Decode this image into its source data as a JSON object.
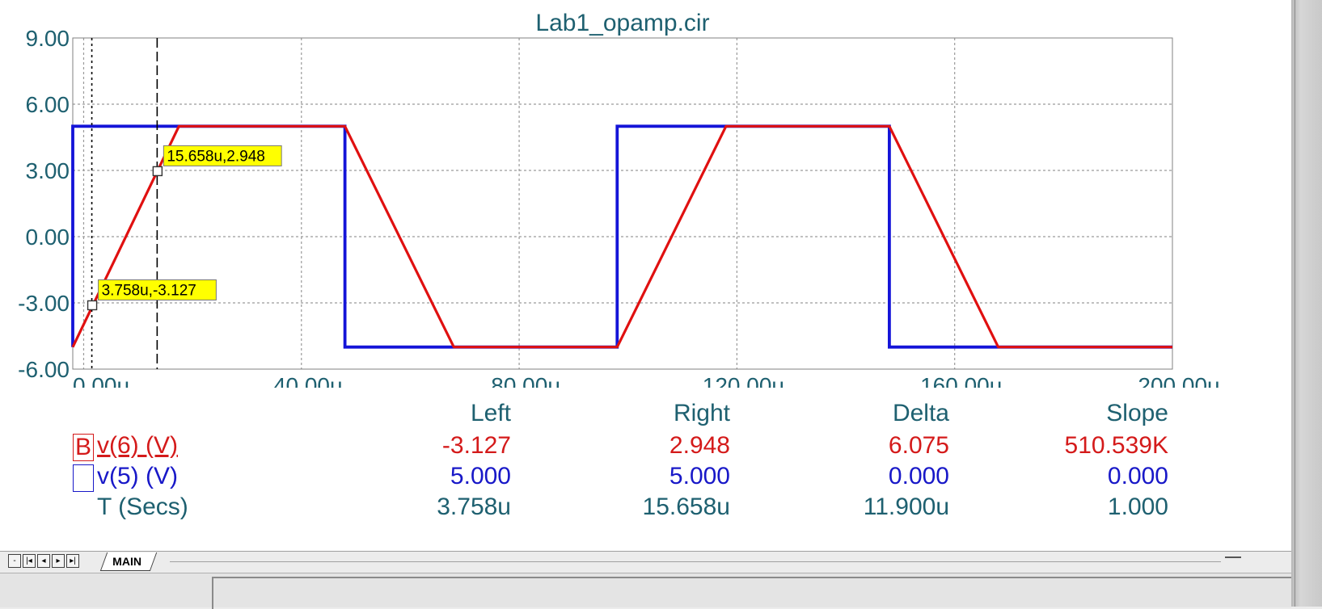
{
  "chart_data": {
    "type": "line",
    "title": "Lab1_opamp.cir",
    "xlim": [
      -2,
      200
    ],
    "ylim": [
      -6,
      9
    ],
    "x_ticks": [
      "0.00u",
      "40.00u",
      "80.00u",
      "120.00u",
      "160.00u",
      "200.00u"
    ],
    "x_tick_values": [
      0,
      40,
      80,
      120,
      160,
      200
    ],
    "y_ticks": [
      "9.00",
      "6.00",
      "3.00",
      "0.00",
      "-3.00",
      "-6.00"
    ],
    "y_tick_values": [
      9,
      6,
      3,
      0,
      -3,
      -6
    ],
    "grid": true,
    "series": [
      {
        "name": "v(6) (V)",
        "color": "#e01010",
        "x": [
          -2,
          17.5,
          48,
          68,
          98,
          118,
          148,
          168,
          200
        ],
        "y": [
          -5,
          5,
          5,
          -5,
          -5,
          5,
          5,
          -5,
          -5
        ]
      },
      {
        "name": "v(5) (V)",
        "color": "#1414d8",
        "x": [
          -2,
          -2,
          48,
          48,
          98,
          98,
          148,
          148,
          200
        ],
        "y": [
          -5,
          5,
          5,
          -5,
          -5,
          5,
          5,
          -5,
          -5
        ]
      }
    ],
    "cursors": {
      "left": {
        "x": 1.5,
        "y": -3.127,
        "label": "3.758u,-3.127"
      },
      "right": {
        "x": 13.5,
        "y": 2.948,
        "label": "15.658u,2.948"
      }
    }
  },
  "readout": {
    "headers": {
      "left": "Left",
      "right": "Right",
      "delta": "Delta",
      "slope": "Slope"
    },
    "rows": [
      {
        "prefix": "B",
        "label": "v(6) (V)",
        "left": "-3.127",
        "right": "2.948",
        "delta": "6.075",
        "slope": "510.539K"
      },
      {
        "prefix": "",
        "label": "v(5) (V)",
        "left": "5.000",
        "right": "5.000",
        "delta": "0.000",
        "slope": "0.000"
      },
      {
        "prefix": "",
        "label": "T (Secs)",
        "left": "3.758u",
        "right": "15.658u",
        "delta": "11.900u",
        "slope": "1.000"
      }
    ]
  },
  "tabs": {
    "active": "MAIN"
  }
}
